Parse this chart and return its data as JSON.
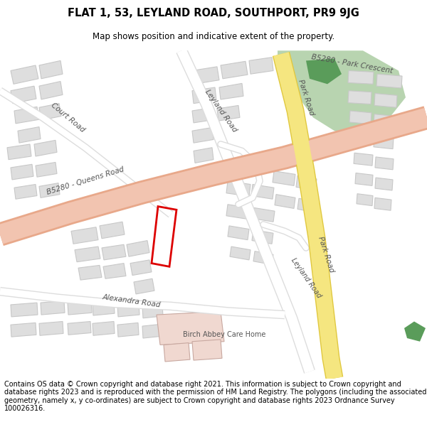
{
  "title_line1": "FLAT 1, 53, LEYLAND ROAD, SOUTHPORT, PR9 9JG",
  "title_line2": "Map shows position and indicative extent of the property.",
  "footer_text": "Contains OS data © Crown copyright and database right 2021. This information is subject to Crown copyright and database rights 2023 and is reproduced with the permission of HM Land Registry. The polygons (including the associated geometry, namely x, y co-ordinates) are subject to Crown copyright and database rights 2023 Ordnance Survey 100026316.",
  "map_bg": "#f7f7f5",
  "road_salmon": "#f2c4b0",
  "road_salmon_border": "#e8a88a",
  "road_yellow": "#f5e680",
  "road_yellow_border": "#e0c840",
  "road_white": "#ffffff",
  "building_color": "#dedede",
  "building_outline": "#c8c8c8",
  "green_area": "#b8d4b0",
  "dark_green": "#5a9c5a",
  "pink_area": "#f0d8d0",
  "red_outline": "#dd0000",
  "road_label_color": "#555555",
  "title_bg": "#ffffff",
  "footer_bg": "#ffffff",
  "fig_width": 6.0,
  "fig_height": 6.25
}
